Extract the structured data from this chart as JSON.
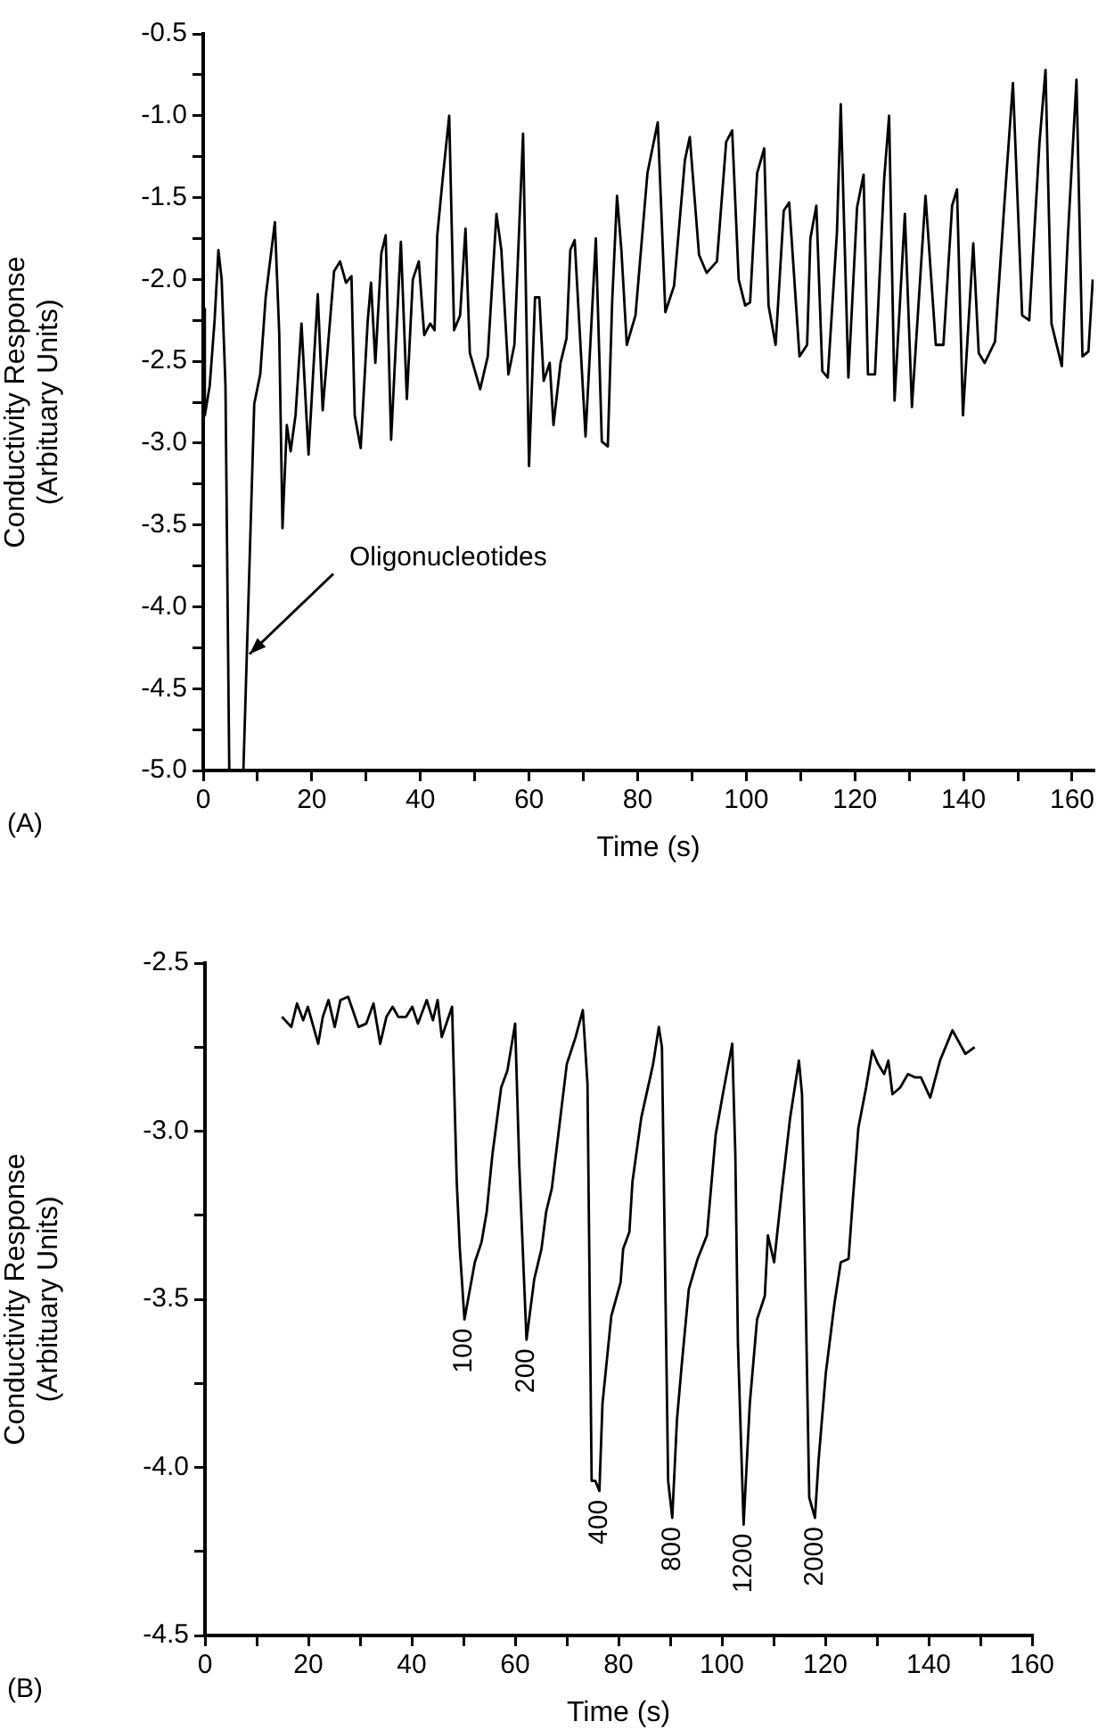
{
  "chart_data": [
    {
      "type": "line",
      "xlabel": "Time (s)",
      "ylabel": "Conductivity Response\n(Arbituary Units)",
      "color": "#000000",
      "x": [
        0,
        0.3,
        1.2,
        2.1,
        2.8,
        3.4,
        4.1,
        4.8,
        5.5,
        6.5,
        7.4,
        9.4,
        10.5,
        11.5,
        13.2,
        14.0,
        14.6,
        15.4,
        16.1,
        17.0,
        18.1,
        19.0,
        19.4,
        20.3,
        21.1,
        22.0,
        24.1,
        25.2,
        26.3,
        27.3,
        27.9,
        29.0,
        30.3,
        30.9,
        31.7,
        32.8,
        33.6,
        34.6,
        36.4,
        37.5,
        38.6,
        39.7,
        40.7,
        41.8,
        42.6,
        43.1,
        44.2,
        45.3,
        46.2,
        47.3,
        48.3,
        49.1,
        51.0,
        52.4,
        54.0,
        54.9,
        56.2,
        57.3,
        58.9,
        60.0,
        61.1,
        61.9,
        62.7,
        63.8,
        64.5,
        65.8,
        66.9,
        67.6,
        68.4,
        70.4,
        72.3,
        73.4,
        74.5,
        75.3,
        76.2,
        77.0,
        78.0,
        79.6,
        81.8,
        83.7,
        85.1,
        86.7,
        88.7,
        89.6,
        91.3,
        92.7,
        94.6,
        96.3,
        97.4,
        98.6,
        99.8,
        100.7,
        102.0,
        103.3,
        104.1,
        105.4,
        106.9,
        107.9,
        109.8,
        111.2,
        111.8,
        112.9,
        114.0,
        115.0,
        116.7,
        117.4,
        118.8,
        120.4,
        121.6,
        122.4,
        123.7,
        125.4,
        126.3,
        127.3,
        129.2,
        130.5,
        133.0,
        134.9,
        136.3,
        137.9,
        138.8,
        139.9,
        141.8,
        142.8,
        143.9,
        145.8,
        147.5,
        149.1,
        150.8,
        152.1,
        154.0,
        155.1,
        156.2,
        158.1,
        159.2,
        160.8,
        161.9,
        163.0,
        163.8
      ],
      "values": [
        -2.18,
        -2.83,
        -2.65,
        -2.25,
        -1.82,
        -2.0,
        -2.65,
        -5.0,
        -5.0,
        -5.0,
        -5.0,
        -2.76,
        -2.58,
        -2.11,
        -1.65,
        -2.33,
        -3.52,
        -2.89,
        -3.05,
        -2.83,
        -2.27,
        -2.83,
        -3.07,
        -2.54,
        -2.09,
        -2.8,
        -1.95,
        -1.89,
        -2.02,
        -1.98,
        -2.83,
        -3.03,
        -2.25,
        -2.02,
        -2.51,
        -1.84,
        -1.73,
        -2.98,
        -1.77,
        -2.73,
        -2.0,
        -1.89,
        -2.34,
        -2.27,
        -2.31,
        -1.73,
        -1.35,
        -1.0,
        -2.31,
        -2.22,
        -1.69,
        -2.45,
        -2.67,
        -2.47,
        -1.6,
        -1.82,
        -2.58,
        -2.4,
        -1.11,
        -3.14,
        -2.11,
        -2.11,
        -2.62,
        -2.51,
        -2.89,
        -2.51,
        -2.36,
        -1.82,
        -1.76,
        -2.96,
        -1.75,
        -2.99,
        -3.02,
        -2.14,
        -1.49,
        -1.82,
        -2.4,
        -2.22,
        -1.35,
        -1.04,
        -2.2,
        -2.04,
        -1.27,
        -1.13,
        -1.85,
        -1.96,
        -1.89,
        -1.16,
        -1.09,
        -2.0,
        -2.16,
        -2.14,
        -1.35,
        -1.2,
        -2.16,
        -2.4,
        -1.58,
        -1.53,
        -2.47,
        -2.4,
        -1.75,
        -1.55,
        -2.56,
        -2.6,
        -1.71,
        -0.93,
        -2.6,
        -1.56,
        -1.36,
        -2.58,
        -2.58,
        -1.38,
        -1.0,
        -2.74,
        -1.6,
        -2.78,
        -1.49,
        -2.4,
        -2.4,
        -1.55,
        -1.45,
        -2.83,
        -1.78,
        -2.45,
        -2.51,
        -2.38,
        -1.55,
        -0.8,
        -2.22,
        -2.25,
        -1.16,
        -0.72,
        -2.27,
        -2.53,
        -1.75,
        -0.78,
        -2.47,
        -2.44,
        -2.0
      ],
      "xlim": [
        0,
        164
      ],
      "xticks": [
        0,
        {
          "value": 10,
          "label": null
        },
        20,
        {
          "value": 30,
          "label": null
        },
        40,
        {
          "value": 50,
          "label": null
        },
        60,
        {
          "value": 70,
          "label": null
        },
        80,
        {
          "value": 90,
          "label": null
        },
        100,
        {
          "value": 110,
          "label": null
        },
        120,
        {
          "value": 130,
          "label": null
        },
        140,
        {
          "value": 150,
          "label": null
        },
        160
      ],
      "ylim": [
        -5.0,
        -0.5
      ],
      "yticks": [
        -0.5,
        {
          "value": -0.75,
          "label": null
        },
        {
          "value": -1,
          "label": "-1.0"
        },
        {
          "value": -1.25,
          "label": null
        },
        -1.5,
        {
          "value": -1.75,
          "label": null
        },
        {
          "value": -2,
          "label": "-2.0"
        },
        {
          "value": -2.25,
          "label": null
        },
        -2.5,
        {
          "value": -2.75,
          "label": null
        },
        {
          "value": -3,
          "label": "-3.0"
        },
        {
          "value": -3.25,
          "label": null
        },
        -3.5,
        {
          "value": -3.75,
          "label": null
        },
        {
          "value": -4,
          "label": "-4.0"
        },
        {
          "value": -4.25,
          "label": null
        },
        -4.5,
        {
          "value": -4.75,
          "label": null
        },
        {
          "value": -5,
          "label": "-5.0"
        }
      ],
      "grid": false,
      "annotations": [
        {
          "text": "Oligonucleotides",
          "x": 8.2,
          "y": -4.3
        },
        "(A)"
      ]
    },
    {
      "type": "line",
      "xlabel": "Time (s)",
      "ylabel": "Conductivity Response\n(Arbituary Units)",
      "color": "#000000",
      "x": [
        14.9,
        16.7,
        17.8,
        19.0,
        19.9,
        21.9,
        22.8,
        23.9,
        25.1,
        26.2,
        27.7,
        29.7,
        31.2,
        32.6,
        33.9,
        35.1,
        36.3,
        37.4,
        38.9,
        40.1,
        41.2,
        42.9,
        44.1,
        45.0,
        45.8,
        47.8,
        48.7,
        49.3,
        50.2,
        52.2,
        53.5,
        54.5,
        55.6,
        57.3,
        58.5,
        60.0,
        60.8,
        62.2,
        63.7,
        65.1,
        66.0,
        67.1,
        70.0,
        71.7,
        73.1,
        74.0,
        74.8,
        75.5,
        76.3,
        76.9,
        78.6,
        80.4,
        80.9,
        82.1,
        82.7,
        84.4,
        86.7,
        87.8,
        88.4,
        89.6,
        90.4,
        91.3,
        92.2,
        93.6,
        95.3,
        97.1,
        98.8,
        100.3,
        102.0,
        102.6,
        103.1,
        104.2,
        105.4,
        106.8,
        108.3,
        108.9,
        110.1,
        111.5,
        113.2,
        114.9,
        115.5,
        116.9,
        118.0,
        118.7,
        120.1,
        121.8,
        123.0,
        124.5,
        125.3,
        126.4,
        127.9,
        129.1,
        130.2,
        131.4,
        132.2,
        133.0,
        134.5,
        136.0,
        137.4,
        138.5,
        140.3,
        142.2,
        144.6,
        147.1,
        148.9
      ],
      "values": [
        -2.66,
        -2.69,
        -2.62,
        -2.67,
        -2.63,
        -2.74,
        -2.66,
        -2.61,
        -2.69,
        -2.61,
        -2.6,
        -2.69,
        -2.68,
        -2.62,
        -2.74,
        -2.66,
        -2.63,
        -2.66,
        -2.66,
        -2.63,
        -2.68,
        -2.61,
        -2.67,
        -2.61,
        -2.72,
        -2.63,
        -3.15,
        -3.35,
        -3.56,
        -3.39,
        -3.33,
        -3.24,
        -3.07,
        -2.87,
        -2.82,
        -2.68,
        -3.1,
        -3.62,
        -3.44,
        -3.35,
        -3.24,
        -3.17,
        -2.8,
        -2.72,
        -2.64,
        -2.86,
        -4.04,
        -4.04,
        -4.07,
        -3.81,
        -3.55,
        -3.45,
        -3.35,
        -3.3,
        -3.15,
        -2.96,
        -2.8,
        -2.69,
        -2.75,
        -4.04,
        -4.15,
        -3.86,
        -3.7,
        -3.47,
        -3.38,
        -3.31,
        -3.01,
        -2.88,
        -2.74,
        -3.07,
        -3.63,
        -4.17,
        -3.81,
        -3.56,
        -3.49,
        -3.31,
        -3.39,
        -3.19,
        -2.96,
        -2.79,
        -2.89,
        -4.09,
        -4.15,
        -3.98,
        -3.72,
        -3.51,
        -3.39,
        -3.38,
        -3.21,
        -2.99,
        -2.87,
        -2.76,
        -2.8,
        -2.83,
        -2.79,
        -2.89,
        -2.87,
        -2.83,
        -2.84,
        -2.84,
        -2.9,
        -2.79,
        -2.7,
        -2.77,
        -2.75
      ],
      "xlim": [
        0,
        160
      ],
      "xticks": [
        0,
        {
          "value": 10,
          "label": null
        },
        20,
        {
          "value": 30,
          "label": null
        },
        40,
        {
          "value": 50,
          "label": null
        },
        60,
        {
          "value": 70,
          "label": null
        },
        80,
        {
          "value": 90,
          "label": null
        },
        100,
        {
          "value": 110,
          "label": null
        },
        120,
        {
          "value": 130,
          "label": null
        },
        140,
        {
          "value": 150,
          "label": null
        },
        160
      ],
      "ylim": [
        -4.5,
        -2.5
      ],
      "yticks": [
        -2.5,
        {
          "value": -2.75,
          "label": null
        },
        {
          "value": -3,
          "label": "-3.0"
        },
        {
          "value": -3.25,
          "label": null
        },
        -3.5,
        {
          "value": -3.75,
          "label": null
        },
        {
          "value": -4,
          "label": "-4.0"
        },
        {
          "value": -4.25,
          "label": null
        },
        -4.5
      ],
      "grid": false,
      "annotations": [
        {
          "text": "100",
          "x": 50.2,
          "y": -3.56
        },
        {
          "text": "200",
          "x": 62.2,
          "y": -3.62
        },
        {
          "text": "400",
          "x": 76.3,
          "y": -4.07
        },
        {
          "text": "800",
          "x": 90.4,
          "y": -4.15
        },
        {
          "text": "1200",
          "x": 104.2,
          "y": -4.17
        },
        {
          "text": "2000",
          "x": 118.0,
          "y": -4.15
        },
        "(B)"
      ]
    }
  ]
}
